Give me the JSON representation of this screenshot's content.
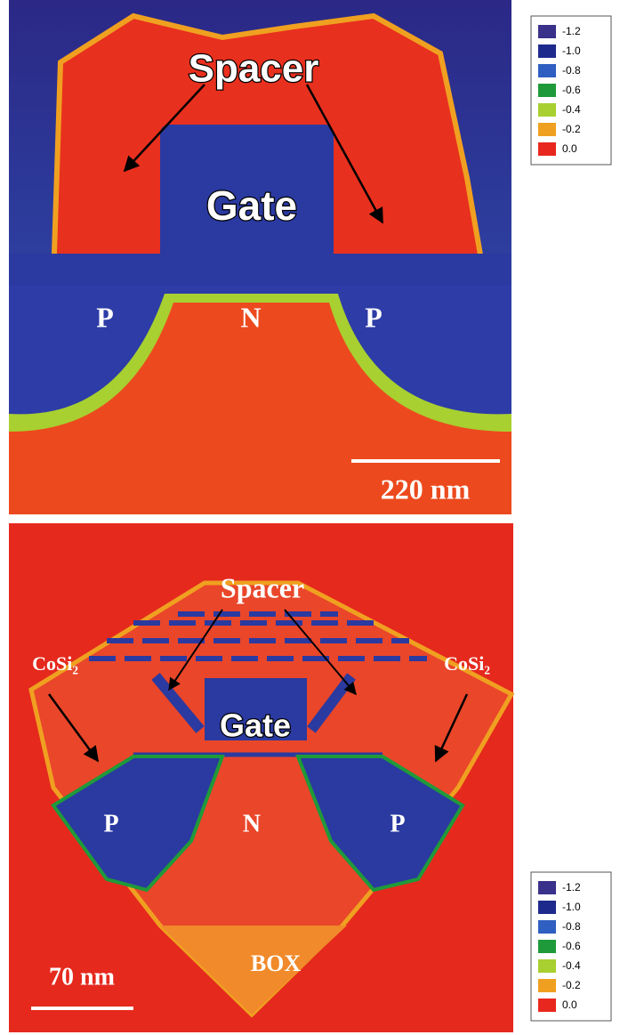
{
  "panels": [
    {
      "labels": {
        "spacer": "Spacer",
        "gate": "Gate",
        "p_left": "P",
        "n": "N",
        "p_right": "P"
      },
      "scale_bar": "220 nm",
      "legend": [
        {
          "label": "-1.2",
          "color": "#3a318a"
        },
        {
          "label": "-1.0",
          "color": "#1e2a8c"
        },
        {
          "label": "-0.8",
          "color": "#2f5fc0"
        },
        {
          "label": "-0.6",
          "color": "#1f9a3a"
        },
        {
          "label": "-0.4",
          "color": "#a8d030"
        },
        {
          "label": "-0.2",
          "color": "#f0a020"
        },
        {
          "label": "0.0",
          "color": "#e8281e"
        }
      ]
    },
    {
      "labels": {
        "spacer": "Spacer",
        "cosi_left": "CoSi₂",
        "cosi_right": "CoSi₂",
        "gate": "Gate",
        "p_left": "P",
        "n": "N",
        "p_right": "P",
        "box": "BOX"
      },
      "scale_bar": "70 nm",
      "legend": [
        {
          "label": "-1.2",
          "color": "#3a318a"
        },
        {
          "label": "-1.0",
          "color": "#1e2a8c"
        },
        {
          "label": "-0.8",
          "color": "#2f5fc0"
        },
        {
          "label": "-0.6",
          "color": "#1f9a3a"
        },
        {
          "label": "-0.4",
          "color": "#a8d030"
        },
        {
          "label": "-0.2",
          "color": "#f0a020"
        },
        {
          "label": "0.0",
          "color": "#e8281e"
        }
      ]
    }
  ]
}
